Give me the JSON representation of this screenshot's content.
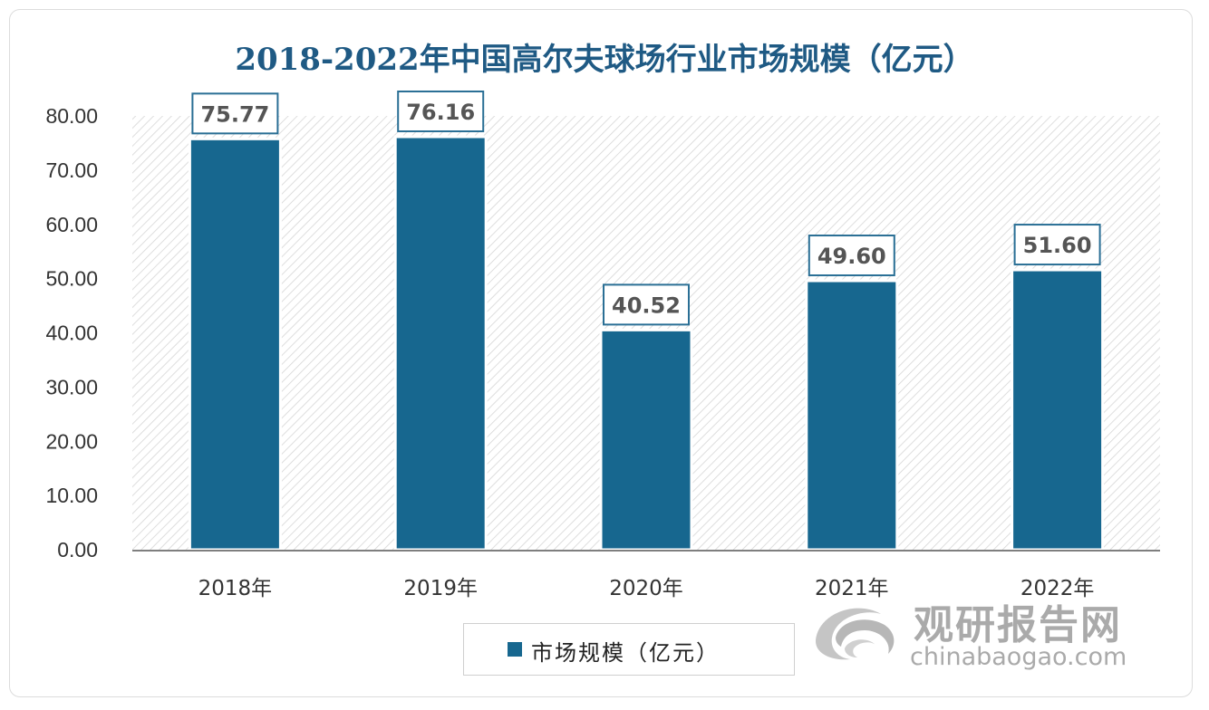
{
  "chart_data": {
    "type": "bar",
    "title": "2018-2022年中国高尔夫球场行业市场规模（亿元）",
    "categories": [
      "2018年",
      "2019年",
      "2020年",
      "2021年",
      "2022年"
    ],
    "series": [
      {
        "name": "市场规模（亿元）",
        "values": [
          75.77,
          76.16,
          40.52,
          49.6,
          51.6
        ],
        "labels": [
          "75.77",
          "76.16",
          "40.52",
          "49.60",
          "51.60"
        ]
      }
    ],
    "yticks": [
      "0.00",
      "10.00",
      "20.00",
      "30.00",
      "40.00",
      "50.00",
      "60.00",
      "70.00",
      "80.00"
    ],
    "ylim": [
      0,
      80
    ],
    "xlabel": "",
    "ylabel": "",
    "grid": false,
    "legend_position": "bottom-center",
    "bar_color": "#17678f",
    "background_pattern": "diagonal-hatch"
  },
  "watermark": {
    "name_cn": "观研报告网",
    "url": "chinabaogao.com",
    "icon": "swirl-logo-icon"
  }
}
